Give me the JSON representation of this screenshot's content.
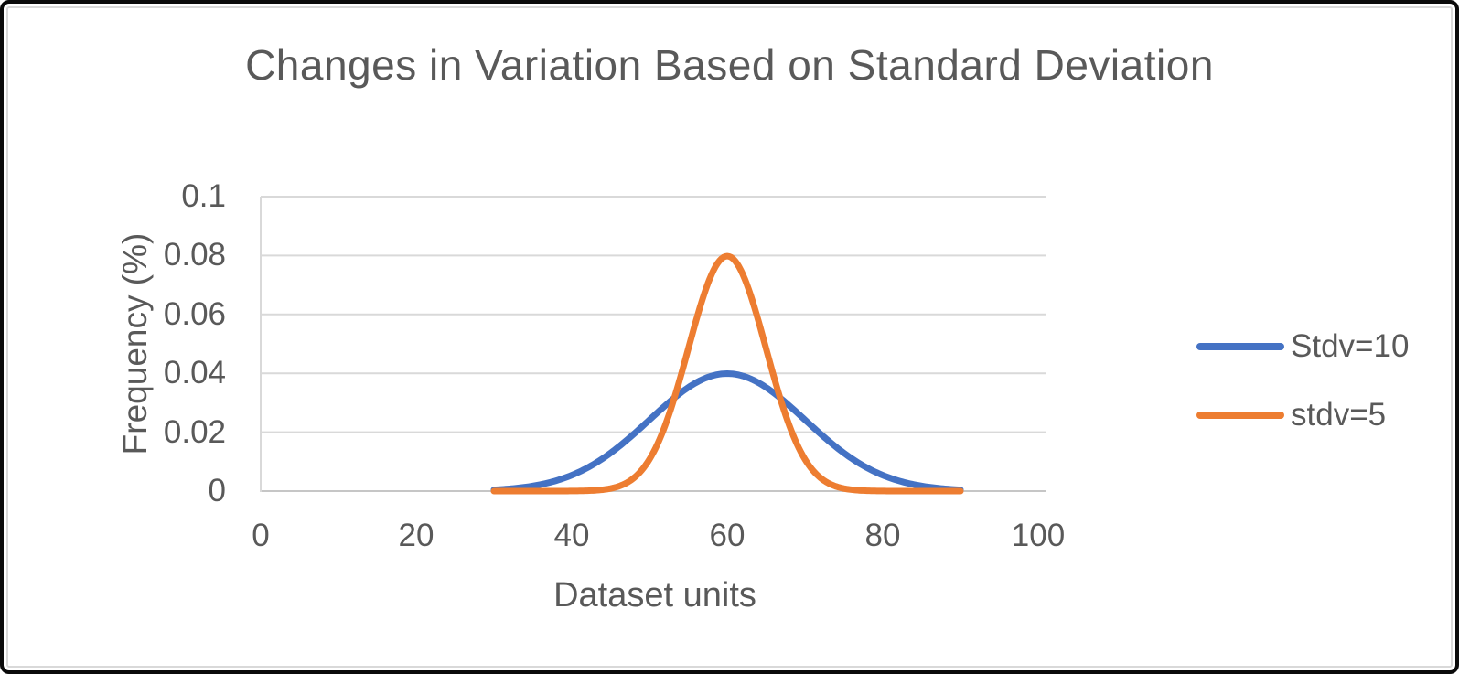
{
  "window": {
    "background": "#ffffff",
    "outer_border_color": "#0a0a0a",
    "inner_border_color": "#d9d9d9"
  },
  "chart_data": {
    "type": "line",
    "title": "Changes in Variation Based on Standard Deviation",
    "xlabel": "Dataset units",
    "ylabel": "Frequency (%)",
    "xlim": [
      0,
      100
    ],
    "ylim": [
      0,
      0.1
    ],
    "x_ticks": [
      0,
      20,
      40,
      60,
      80,
      100
    ],
    "y_tick_labels": [
      "0",
      "0.02",
      "0.04",
      "0.06",
      "0.08",
      "0.1"
    ],
    "grid": "horizontal-only",
    "gridline_color": "#d9d9d9",
    "baseline_color": "#c6c6c6",
    "text_color": "#595959",
    "legend_position": "right",
    "series": [
      {
        "name": "Stdv=10",
        "color": "#4472C4",
        "curve": "normal-distribution",
        "mean": 60,
        "stdev": 10,
        "x_range": [
          30,
          90
        ],
        "peak_y": 0.0399,
        "sample_points": {
          "x": [
            30,
            35,
            40,
            45,
            50,
            55,
            60,
            65,
            70,
            75,
            80,
            85,
            90
          ],
          "y": [
            0.00044,
            0.00175,
            0.0054,
            0.01295,
            0.0242,
            0.03521,
            0.03989,
            0.03521,
            0.0242,
            0.01295,
            0.0054,
            0.00175,
            0.00044
          ]
        }
      },
      {
        "name": "stdv=5",
        "color": "#ED7D31",
        "curve": "normal-distribution",
        "mean": 60,
        "stdev": 5,
        "x_range": [
          30,
          90
        ],
        "peak_y": 0.0798,
        "sample_points": {
          "x": [
            30,
            35,
            40,
            45,
            50,
            55,
            60,
            65,
            70,
            75,
            80,
            85,
            90
          ],
          "y": [
            0,
            3e-07,
            2.7e-05,
            0.00089,
            0.0108,
            0.04839,
            0.07979,
            0.04839,
            0.0108,
            0.00089,
            2.7e-05,
            3e-07,
            0
          ]
        }
      }
    ]
  }
}
